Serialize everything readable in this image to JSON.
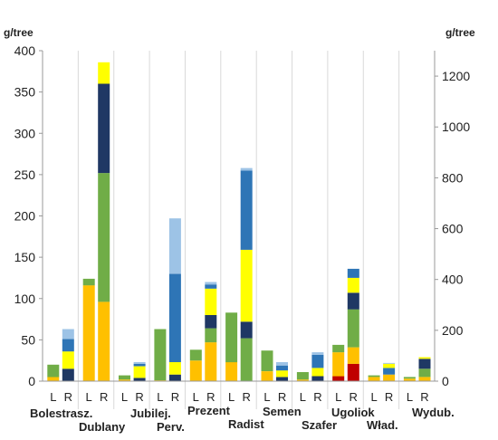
{
  "chart_data": {
    "type": "bar",
    "stacked": true,
    "left_axis": {
      "label": "g/tree",
      "range": [
        0,
        400
      ],
      "ticks": [
        0,
        50,
        100,
        150,
        200,
        250,
        300,
        350,
        400
      ]
    },
    "right_axis": {
      "label": "g/tree",
      "range": [
        0,
        1300
      ],
      "ticks": [
        0,
        200,
        400,
        600,
        800,
        1000,
        1200
      ]
    },
    "grid": "vertical separators between cultivars",
    "cultivars": [
      "Bolestrasz.",
      "Dublany",
      "Jubilej.",
      "Perv.",
      "Prezent",
      "Radist",
      "Semen",
      "Szafer",
      "Ugoliok",
      "Wład.",
      "Wydub."
    ],
    "side_labels": [
      "L",
      "R"
    ],
    "segment_colors": [
      "#c00000",
      "#ffc000",
      "#ffff00",
      "#70ad47",
      "#2e75b6",
      "#1f3864",
      "#9dc3e6"
    ],
    "stacks": [
      {
        "cultivar": "Bolestrasz.",
        "side": "L",
        "segments": [
          {
            "color": "#ffc000",
            "value": 5
          },
          {
            "color": "#70ad47",
            "value": 15
          }
        ]
      },
      {
        "cultivar": "Bolestrasz.",
        "side": "R",
        "segments": [
          {
            "color": "#1f3864",
            "value": 15
          },
          {
            "color": "#ffff00",
            "value": 21
          },
          {
            "color": "#2e75b6",
            "value": 15
          },
          {
            "color": "#9dc3e6",
            "value": 12
          }
        ]
      },
      {
        "cultivar": "Dublany",
        "side": "L",
        "segments": [
          {
            "color": "#ffc000",
            "value": 116
          },
          {
            "color": "#70ad47",
            "value": 8
          }
        ]
      },
      {
        "cultivar": "Dublany",
        "side": "R",
        "segments": [
          {
            "color": "#ffc000",
            "value": 96
          },
          {
            "color": "#70ad47",
            "value": 156
          },
          {
            "color": "#1f3864",
            "value": 108
          },
          {
            "color": "#ffff00",
            "value": 26
          }
        ]
      },
      {
        "cultivar": "Jubilej.",
        "side": "L",
        "segments": [
          {
            "color": "#ffc000",
            "value": 2
          },
          {
            "color": "#70ad47",
            "value": 5
          }
        ]
      },
      {
        "cultivar": "Jubilej.",
        "side": "R",
        "segments": [
          {
            "color": "#1f3864",
            "value": 4
          },
          {
            "color": "#ffff00",
            "value": 14
          },
          {
            "color": "#2e75b6",
            "value": 3
          },
          {
            "color": "#9dc3e6",
            "value": 2
          }
        ]
      },
      {
        "cultivar": "Perv.",
        "side": "L",
        "segments": [
          {
            "color": "#ffc000",
            "value": 1
          },
          {
            "color": "#70ad47",
            "value": 62
          }
        ]
      },
      {
        "cultivar": "Perv.",
        "side": "R",
        "segments": [
          {
            "color": "#1f3864",
            "value": 8
          },
          {
            "color": "#ffff00",
            "value": 15
          },
          {
            "color": "#2e75b6",
            "value": 107
          },
          {
            "color": "#9dc3e6",
            "value": 67
          }
        ]
      },
      {
        "cultivar": "Prezent",
        "side": "L",
        "segments": [
          {
            "color": "#ffc000",
            "value": 25
          },
          {
            "color": "#70ad47",
            "value": 13
          }
        ]
      },
      {
        "cultivar": "Prezent",
        "side": "R",
        "segments": [
          {
            "color": "#ffc000",
            "value": 47
          },
          {
            "color": "#70ad47",
            "value": 17
          },
          {
            "color": "#1f3864",
            "value": 16
          },
          {
            "color": "#ffff00",
            "value": 32
          },
          {
            "color": "#2e75b6",
            "value": 5
          },
          {
            "color": "#9dc3e6",
            "value": 3
          }
        ]
      },
      {
        "cultivar": "Radist",
        "side": "L",
        "segments": [
          {
            "color": "#ffc000",
            "value": 23
          },
          {
            "color": "#70ad47",
            "value": 60
          }
        ]
      },
      {
        "cultivar": "Radist",
        "side": "R",
        "segments": [
          {
            "color": "#70ad47",
            "value": 52
          },
          {
            "color": "#1f3864",
            "value": 20
          },
          {
            "color": "#ffff00",
            "value": 87
          },
          {
            "color": "#2e75b6",
            "value": 96
          },
          {
            "color": "#9dc3e6",
            "value": 3
          }
        ]
      },
      {
        "cultivar": "Semen",
        "side": "L",
        "segments": [
          {
            "color": "#ffc000",
            "value": 12
          },
          {
            "color": "#70ad47",
            "value": 25
          }
        ]
      },
      {
        "cultivar": "Semen",
        "side": "R",
        "segments": [
          {
            "color": "#1f3864",
            "value": 5
          },
          {
            "color": "#ffff00",
            "value": 8
          },
          {
            "color": "#2e75b6",
            "value": 6
          },
          {
            "color": "#9dc3e6",
            "value": 4
          }
        ]
      },
      {
        "cultivar": "Szafer",
        "side": "L",
        "segments": [
          {
            "color": "#ffc000",
            "value": 2
          },
          {
            "color": "#70ad47",
            "value": 9
          }
        ]
      },
      {
        "cultivar": "Szafer",
        "side": "R",
        "segments": [
          {
            "color": "#1f3864",
            "value": 6
          },
          {
            "color": "#ffff00",
            "value": 10
          },
          {
            "color": "#2e75b6",
            "value": 16
          },
          {
            "color": "#9dc3e6",
            "value": 3
          }
        ]
      },
      {
        "cultivar": "Ugoliok",
        "side": "L",
        "segments": [
          {
            "color": "#c00000",
            "value": 6
          },
          {
            "color": "#ffc000",
            "value": 29
          },
          {
            "color": "#70ad47",
            "value": 9
          }
        ]
      },
      {
        "cultivar": "Ugoliok",
        "side": "R",
        "segments": [
          {
            "color": "#c00000",
            "value": 21
          },
          {
            "color": "#ffc000",
            "value": 20
          },
          {
            "color": "#70ad47",
            "value": 46
          },
          {
            "color": "#1f3864",
            "value": 20
          },
          {
            "color": "#ffff00",
            "value": 18
          },
          {
            "color": "#2e75b6",
            "value": 11
          }
        ]
      },
      {
        "cultivar": "Wład.",
        "side": "L",
        "segments": [
          {
            "color": "#ffc000",
            "value": 5
          },
          {
            "color": "#70ad47",
            "value": 2
          }
        ]
      },
      {
        "cultivar": "Wład.",
        "side": "R",
        "segments": [
          {
            "color": "#ffc000",
            "value": 8
          },
          {
            "color": "#2e75b6",
            "value": 8
          },
          {
            "color": "#ffff00",
            "value": 5
          },
          {
            "color": "#9dc3e6",
            "value": 1
          }
        ]
      },
      {
        "cultivar": "Wydub.",
        "side": "L",
        "segments": [
          {
            "color": "#ffc000",
            "value": 3
          },
          {
            "color": "#70ad47",
            "value": 2
          }
        ]
      },
      {
        "cultivar": "Wydub.",
        "side": "R",
        "segments": [
          {
            "color": "#ffc000",
            "value": 5
          },
          {
            "color": "#70ad47",
            "value": 10
          },
          {
            "color": "#1f3864",
            "value": 12
          },
          {
            "color": "#ffff00",
            "value": 2
          }
        ]
      }
    ]
  }
}
